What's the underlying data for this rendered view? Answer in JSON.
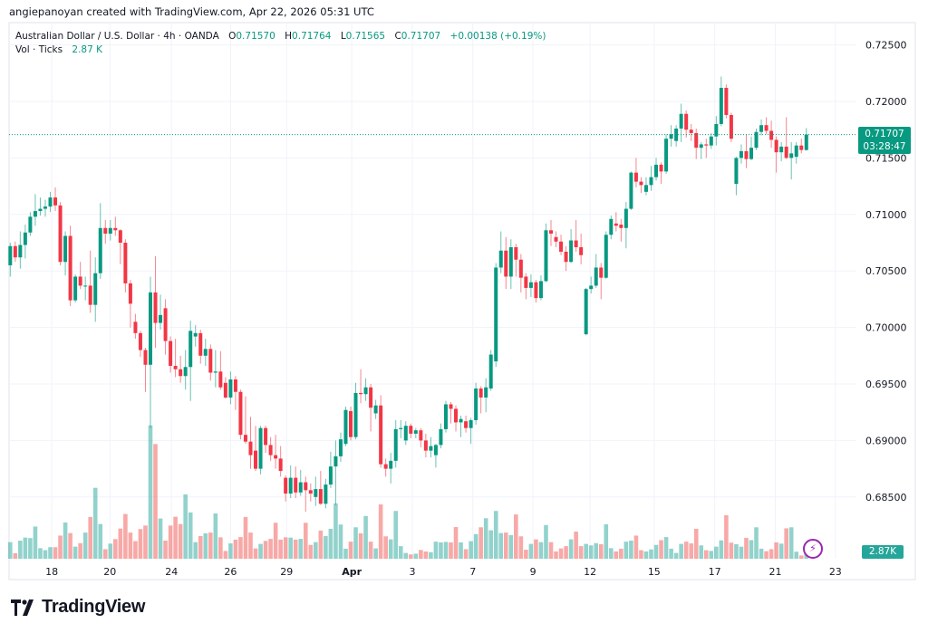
{
  "header": {
    "credit": "angiepanoyan created with TradingView.com, Apr 22, 2026 05:31 UTC"
  },
  "legend": {
    "symbol": "Australian Dollar / U.S. Dollar · 4h · OANDA",
    "o_label": "O",
    "o": "0.71570",
    "h_label": "H",
    "h": "0.71764",
    "l_label": "L",
    "l": "0.71565",
    "c_label": "C",
    "c": "0.71707",
    "change": "+0.00138 (+0.19%)",
    "vol_label": "Vol · Ticks",
    "vol": "2.87 K"
  },
  "price_tag": {
    "price": "0.71707",
    "countdown": "03:28:47"
  },
  "volume_tag": "2.87K",
  "icons": {
    "alert": "lightning-icon"
  },
  "footer": {
    "brand": "TradingView"
  },
  "colors": {
    "up": "#089981",
    "down": "#f23645",
    "vol_up": "#26a69a",
    "vol_down": "#ef5350",
    "grid": "#f0f3fa"
  },
  "chart_data": {
    "type": "candlestick",
    "title": "Australian Dollar / U.S. Dollar · 4h · OANDA",
    "ylabel": "Price",
    "ylim": [
      0.6805,
      0.7275
    ],
    "y_ticks": [
      "0.72500",
      "0.72000",
      "0.71500",
      "0.71000",
      "0.70500",
      "0.70000",
      "0.69500",
      "0.69000",
      "0.68500"
    ],
    "x_ticks": [
      {
        "label": "18",
        "bar": 9.3
      },
      {
        "label": "20",
        "bar": 20.9
      },
      {
        "label": "24",
        "bar": 33.2
      },
      {
        "label": "26",
        "bar": 45
      },
      {
        "label": "29",
        "bar": 56.2
      },
      {
        "label": "Apr",
        "bar": 69.2,
        "bold": true
      },
      {
        "label": "3",
        "bar": 81.3
      },
      {
        "label": "7",
        "bar": 93.4
      },
      {
        "label": "9",
        "bar": 105.4
      },
      {
        "label": "12",
        "bar": 116.8
      },
      {
        "label": "15",
        "bar": 129.6
      },
      {
        "label": "17",
        "bar": 141.7
      },
      {
        "label": "21",
        "bar": 153.8
      },
      {
        "label": "23",
        "bar": 165.8
      }
    ],
    "grid": true,
    "last_price": 0.71707,
    "ohlc": [
      [
        0.7055,
        0.7075,
        0.7045,
        0.7072
      ],
      [
        0.7072,
        0.7076,
        0.7058,
        0.7062
      ],
      [
        0.7062,
        0.7085,
        0.7052,
        0.7073
      ],
      [
        0.7073,
        0.7091,
        0.7061,
        0.7084
      ],
      [
        0.7084,
        0.7102,
        0.7081,
        0.7098
      ],
      [
        0.7098,
        0.7118,
        0.709,
        0.7103
      ],
      [
        0.7103,
        0.7115,
        0.7099,
        0.7105
      ],
      [
        0.7105,
        0.7113,
        0.7098,
        0.7107
      ],
      [
        0.7107,
        0.712,
        0.7102,
        0.7115
      ],
      [
        0.7115,
        0.7124,
        0.7103,
        0.7108
      ],
      [
        0.7108,
        0.7111,
        0.7055,
        0.7058
      ],
      [
        0.7058,
        0.7085,
        0.7046,
        0.7081
      ],
      [
        0.7081,
        0.709,
        0.7019,
        0.7024
      ],
      [
        0.7024,
        0.7047,
        0.7022,
        0.7045
      ],
      [
        0.7045,
        0.7058,
        0.7034,
        0.7037
      ],
      [
        0.7037,
        0.7045,
        0.7024,
        0.7037
      ],
      [
        0.7037,
        0.7068,
        0.7013,
        0.702
      ],
      [
        0.702,
        0.7062,
        0.7005,
        0.7048
      ],
      [
        0.7048,
        0.711,
        0.7043,
        0.7088
      ],
      [
        0.7088,
        0.7095,
        0.7074,
        0.7083
      ],
      [
        0.7083,
        0.7095,
        0.7077,
        0.7088
      ],
      [
        0.7088,
        0.7098,
        0.7081,
        0.7086
      ],
      [
        0.7086,
        0.7087,
        0.7056,
        0.7075
      ],
      [
        0.7075,
        0.7078,
        0.7031,
        0.7039
      ],
      [
        0.7039,
        0.7042,
        0.7,
        0.7021
      ],
      [
        0.7005,
        0.7012,
        0.699,
        0.6995
      ],
      [
        0.6995,
        0.6997,
        0.6974,
        0.698
      ],
      [
        0.698,
        0.6982,
        0.6943,
        0.6967
      ],
      [
        0.6967,
        0.7045,
        0.6911,
        0.7031
      ],
      [
        0.7031,
        0.7063,
        0.6982,
        0.7004
      ],
      [
        0.7004,
        0.7029,
        0.6998,
        0.7011
      ],
      [
        0.7017,
        0.7025,
        0.6976,
        0.6988
      ],
      [
        0.6988,
        0.6992,
        0.696,
        0.6966
      ],
      [
        0.6966,
        0.699,
        0.6956,
        0.6963
      ],
      [
        0.6963,
        0.6975,
        0.6951,
        0.6957
      ],
      [
        0.6957,
        0.698,
        0.6945,
        0.6965
      ],
      [
        0.6965,
        0.7006,
        0.6935,
        0.6997
      ],
      [
        0.6992,
        0.7002,
        0.6983,
        0.6995
      ],
      [
        0.6995,
        0.6998,
        0.6968,
        0.6975
      ],
      [
        0.6975,
        0.699,
        0.6966,
        0.6981
      ],
      [
        0.6981,
        0.6985,
        0.6953,
        0.696
      ],
      [
        0.696,
        0.698,
        0.6947,
        0.6961
      ],
      [
        0.6961,
        0.6979,
        0.6945,
        0.6947
      ],
      [
        0.6951,
        0.6956,
        0.6937,
        0.6938
      ],
      [
        0.6938,
        0.6961,
        0.6932,
        0.6954
      ],
      [
        0.6954,
        0.6957,
        0.6927,
        0.6943
      ],
      [
        0.6943,
        0.6945,
        0.6901,
        0.6905
      ],
      [
        0.6905,
        0.6939,
        0.6897,
        0.6899
      ],
      [
        0.6899,
        0.6921,
        0.6875,
        0.6887
      ],
      [
        0.6891,
        0.6913,
        0.6873,
        0.6875
      ],
      [
        0.6875,
        0.6913,
        0.687,
        0.6911
      ],
      [
        0.6911,
        0.6913,
        0.6889,
        0.6896
      ],
      [
        0.6896,
        0.6903,
        0.6882,
        0.6887
      ],
      [
        0.6887,
        0.6905,
        0.6875,
        0.6884
      ],
      [
        0.6884,
        0.6895,
        0.6868,
        0.6873
      ],
      [
        0.6867,
        0.6869,
        0.6846,
        0.6853
      ],
      [
        0.6853,
        0.6878,
        0.6849,
        0.6867
      ],
      [
        0.6867,
        0.6877,
        0.6849,
        0.6854
      ],
      [
        0.6854,
        0.6874,
        0.6851,
        0.6863
      ],
      [
        0.6863,
        0.6868,
        0.6837,
        0.6856
      ],
      [
        0.6856,
        0.6862,
        0.6846,
        0.6853
      ],
      [
        0.685,
        0.6868,
        0.6842,
        0.6857
      ],
      [
        0.6857,
        0.6873,
        0.6843,
        0.6844
      ],
      [
        0.6844,
        0.6866,
        0.684,
        0.6861
      ],
      [
        0.6861,
        0.689,
        0.6858,
        0.6877
      ],
      [
        0.6877,
        0.69,
        0.6843,
        0.6886
      ],
      [
        0.6886,
        0.6907,
        0.6881,
        0.6901
      ],
      [
        0.6897,
        0.693,
        0.6895,
        0.6927
      ],
      [
        0.6926,
        0.693,
        0.69,
        0.6903
      ],
      [
        0.6903,
        0.6951,
        0.6901,
        0.6942
      ],
      [
        0.6942,
        0.6963,
        0.6933,
        0.6941
      ],
      [
        0.6941,
        0.6955,
        0.6935,
        0.6947
      ],
      [
        0.6947,
        0.695,
        0.6908,
        0.6929
      ],
      [
        0.6924,
        0.6936,
        0.6919,
        0.6931
      ],
      [
        0.6931,
        0.694,
        0.6876,
        0.6879
      ],
      [
        0.6879,
        0.6884,
        0.6868,
        0.6875
      ],
      [
        0.6875,
        0.6889,
        0.6862,
        0.6882
      ],
      [
        0.6882,
        0.6918,
        0.6876,
        0.691
      ],
      [
        0.691,
        0.6918,
        0.6902,
        0.6911
      ],
      [
        0.69,
        0.6917,
        0.6896,
        0.6913
      ],
      [
        0.6913,
        0.6915,
        0.6902,
        0.6906
      ],
      [
        0.6906,
        0.6911,
        0.6902,
        0.6909
      ],
      [
        0.6909,
        0.6911,
        0.6894,
        0.69
      ],
      [
        0.69,
        0.6906,
        0.6885,
        0.6891
      ],
      [
        0.6891,
        0.6903,
        0.6885,
        0.6895
      ],
      [
        0.6887,
        0.6897,
        0.6876,
        0.6896
      ],
      [
        0.6896,
        0.6915,
        0.6893,
        0.691
      ],
      [
        0.691,
        0.6935,
        0.6907,
        0.6932
      ],
      [
        0.6932,
        0.6934,
        0.6915,
        0.6928
      ],
      [
        0.6928,
        0.6931,
        0.6908,
        0.6916
      ],
      [
        0.6916,
        0.6922,
        0.6903,
        0.6919
      ],
      [
        0.6917,
        0.6922,
        0.6907,
        0.6911
      ],
      [
        0.6911,
        0.692,
        0.6897,
        0.6918
      ],
      [
        0.6918,
        0.6951,
        0.6914,
        0.6946
      ],
      [
        0.6946,
        0.6948,
        0.6924,
        0.6938
      ],
      [
        0.6938,
        0.6955,
        0.6925,
        0.6947
      ],
      [
        0.6946,
        0.698,
        0.6944,
        0.6976
      ],
      [
        0.697,
        0.7057,
        0.6965,
        0.7053
      ],
      [
        0.7053,
        0.7085,
        0.7048,
        0.7068
      ],
      [
        0.7068,
        0.708,
        0.7034,
        0.7045
      ],
      [
        0.7045,
        0.7078,
        0.7034,
        0.7071
      ],
      [
        0.7071,
        0.7074,
        0.7045,
        0.706
      ],
      [
        0.706,
        0.7065,
        0.7031,
        0.7044
      ],
      [
        0.7045,
        0.7048,
        0.7025,
        0.7035
      ],
      [
        0.7035,
        0.7047,
        0.7027,
        0.704
      ],
      [
        0.704,
        0.7042,
        0.7022,
        0.7026
      ],
      [
        0.7026,
        0.7046,
        0.7024,
        0.7041
      ],
      [
        0.7041,
        0.7092,
        0.704,
        0.7086
      ],
      [
        0.7086,
        0.7095,
        0.7072,
        0.7083
      ],
      [
        0.708,
        0.7085,
        0.7071,
        0.7076
      ],
      [
        0.7076,
        0.7082,
        0.7064,
        0.7067
      ],
      [
        0.7067,
        0.7072,
        0.705,
        0.7058
      ],
      [
        0.7058,
        0.7087,
        0.7057,
        0.7077
      ],
      [
        0.7077,
        0.7095,
        0.7067,
        0.7071
      ],
      [
        0.7071,
        0.7083,
        0.7056,
        0.7064
      ],
      [
        0.6994,
        0.7035,
        0.6993,
        0.7034
      ],
      [
        0.7034,
        0.7045,
        0.703,
        0.7037
      ],
      [
        0.7037,
        0.7065,
        0.7035,
        0.7053
      ],
      [
        0.7053,
        0.7057,
        0.7025,
        0.7044
      ],
      [
        0.7044,
        0.7085,
        0.7043,
        0.7082
      ],
      [
        0.7082,
        0.7099,
        0.7078,
        0.7096
      ],
      [
        0.7092,
        0.7102,
        0.7085,
        0.709
      ],
      [
        0.7091,
        0.7096,
        0.7076,
        0.7088
      ],
      [
        0.7088,
        0.7111,
        0.707,
        0.7105
      ],
      [
        0.7105,
        0.7138,
        0.7104,
        0.7137
      ],
      [
        0.7137,
        0.715,
        0.7124,
        0.7129
      ],
      [
        0.7129,
        0.7133,
        0.7119,
        0.7126
      ],
      [
        0.712,
        0.7133,
        0.7117,
        0.7126
      ],
      [
        0.7126,
        0.7143,
        0.7121,
        0.7133
      ],
      [
        0.7133,
        0.715,
        0.713,
        0.7144
      ],
      [
        0.7144,
        0.7146,
        0.7127,
        0.7138
      ],
      [
        0.7138,
        0.7171,
        0.7136,
        0.7167
      ],
      [
        0.7167,
        0.7179,
        0.716,
        0.7171
      ],
      [
        0.7165,
        0.7179,
        0.716,
        0.7176
      ],
      [
        0.7176,
        0.7198,
        0.7164,
        0.7189
      ],
      [
        0.7189,
        0.7192,
        0.7168,
        0.7175
      ],
      [
        0.7175,
        0.718,
        0.7165,
        0.7172
      ],
      [
        0.7172,
        0.7176,
        0.7149,
        0.7159
      ],
      [
        0.7159,
        0.7164,
        0.7149,
        0.7162
      ],
      [
        0.7162,
        0.7167,
        0.715,
        0.7161
      ],
      [
        0.7161,
        0.7172,
        0.7158,
        0.7169
      ],
      [
        0.7169,
        0.7187,
        0.7161,
        0.718
      ],
      [
        0.718,
        0.7222,
        0.7178,
        0.7212
      ],
      [
        0.7212,
        0.7215,
        0.7185,
        0.7188
      ],
      [
        0.7188,
        0.719,
        0.7164,
        0.7167
      ],
      [
        0.7127,
        0.7151,
        0.7117,
        0.715
      ],
      [
        0.715,
        0.7162,
        0.7145,
        0.7156
      ],
      [
        0.7156,
        0.7171,
        0.7141,
        0.7149
      ],
      [
        0.7149,
        0.7169,
        0.7148,
        0.7159
      ],
      [
        0.7159,
        0.7176,
        0.7157,
        0.7173
      ],
      [
        0.7173,
        0.7184,
        0.717,
        0.7179
      ],
      [
        0.7179,
        0.7186,
        0.7171,
        0.7174
      ],
      [
        0.7174,
        0.7183,
        0.7159,
        0.7166
      ],
      [
        0.7166,
        0.7169,
        0.7137,
        0.7155
      ],
      [
        0.7155,
        0.7164,
        0.7147,
        0.716
      ],
      [
        0.716,
        0.7186,
        0.7149,
        0.715
      ],
      [
        0.715,
        0.7164,
        0.7131,
        0.7154
      ],
      [
        0.7151,
        0.7164,
        0.7145,
        0.7161
      ],
      [
        0.7161,
        0.7167,
        0.7154,
        0.7157
      ],
      [
        0.7157,
        0.71764,
        0.71565,
        0.71707
      ]
    ],
    "volume_k": [
      6.6,
      2.2,
      7.2,
      8.4,
      8.2,
      12.8,
      4.2,
      3.4,
      4.6,
      4.6,
      9.2,
      14.4,
      10.2,
      4.8,
      6.2,
      10.4,
      16.6,
      28.2,
      13.8,
      3.8,
      6.0,
      7.8,
      12.0,
      17.8,
      10.4,
      7.0,
      11.8,
      13.2,
      53.0,
      45.6,
      16.0,
      7.2,
      13.2,
      16.7,
      13.8,
      25.6,
      18.4,
      6.6,
      9.0,
      10.1,
      10.4,
      18.0,
      8.5,
      3.1,
      6.1,
      7.6,
      8.6,
      16.6,
      10.4,
      4.1,
      5.9,
      7.1,
      7.9,
      14.3,
      7.6,
      8.5,
      8.4,
      7.6,
      7.9,
      14.3,
      5.5,
      6.6,
      11.2,
      9.0,
      11.9,
      22.0,
      13.6,
      4.0,
      6.8,
      12.5,
      10.1,
      17.0,
      6.8,
      4.1,
      21.6,
      8.9,
      7.7,
      19.0,
      5.0,
      2.3,
      1.7,
      2.0,
      3.5,
      2.9,
      2.6,
      6.8,
      6.5,
      6.7,
      6.5,
      12.6,
      6.5,
      3.8,
      7.0,
      9.8,
      12.5,
      16.1,
      11.3,
      19.0,
      10.2,
      10.4,
      9.4,
      17.6,
      8.9,
      3.6,
      5.9,
      7.7,
      6.6,
      13.4,
      6.6,
      2.9,
      4.1,
      5.0,
      7.7,
      10.8,
      5.0,
      5.9,
      5.3,
      6.2,
      5.8,
      13.7,
      4.2,
      2.9,
      4.0,
      6.8,
      7.2,
      9.2,
      3.4,
      2.9,
      3.7,
      5.5,
      7.4,
      8.6,
      4.0,
      2.3,
      5.9,
      6.8,
      6.1,
      11.9,
      5.3,
      3.4,
      3.1,
      4.8,
      7.3,
      17.3,
      6.4,
      5.8,
      4.8,
      8.3,
      7.4,
      12.5,
      4.0,
      3.0,
      3.8,
      6.5,
      6.0,
      12.1,
      12.5,
      2.8,
      1.3,
      2.87
    ]
  }
}
